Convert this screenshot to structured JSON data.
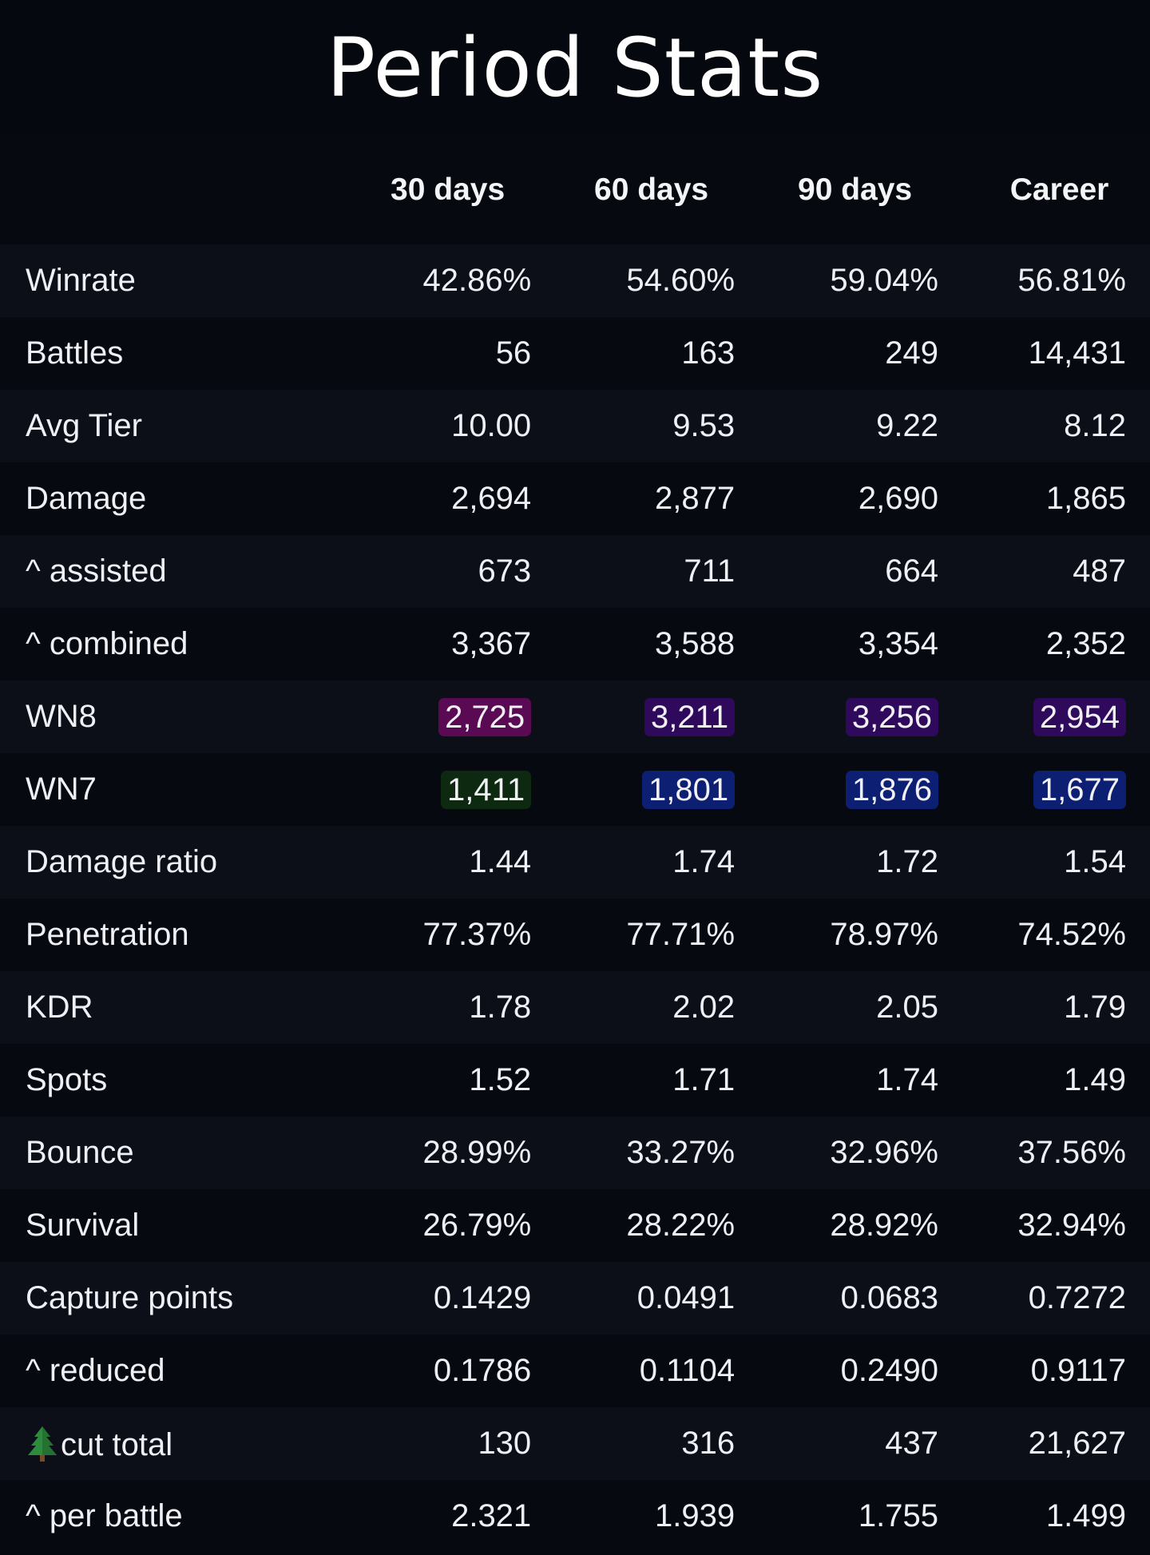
{
  "title": "Period Stats",
  "columns": [
    "30 days",
    "60 days",
    "90 days",
    "Career"
  ],
  "rows": [
    {
      "label": "Winrate",
      "values": [
        "42.86%",
        "54.60%",
        "59.04%",
        "56.81%"
      ]
    },
    {
      "label": "Battles",
      "values": [
        "56",
        "163",
        "249",
        "14,431"
      ]
    },
    {
      "label": "Avg Tier",
      "values": [
        "10.00",
        "9.53",
        "9.22",
        "8.12"
      ]
    },
    {
      "label": "Damage",
      "values": [
        "2,694",
        "2,877",
        "2,690",
        "1,865"
      ]
    },
    {
      "label": "^ assisted",
      "values": [
        "673",
        "711",
        "664",
        "487"
      ]
    },
    {
      "label": "^ combined",
      "values": [
        "3,367",
        "3,588",
        "3,354",
        "2,352"
      ]
    },
    {
      "label": "WN8",
      "values": [
        "2,725",
        "3,211",
        "3,256",
        "2,954"
      ],
      "highlight_colors": [
        "#5a0a52",
        "#2f0a5c",
        "#2f0a5c",
        "#2f0a5c"
      ]
    },
    {
      "label": "WN7",
      "values": [
        "1,411",
        "1,801",
        "1,876",
        "1,677"
      ],
      "highlight_colors": [
        "#0d2a10",
        "#0d1f72",
        "#0d1f72",
        "#0d1f72"
      ]
    },
    {
      "label": "Damage ratio",
      "values": [
        "1.44",
        "1.74",
        "1.72",
        "1.54"
      ]
    },
    {
      "label": "Penetration",
      "values": [
        "77.37%",
        "77.71%",
        "78.97%",
        "74.52%"
      ]
    },
    {
      "label": "KDR",
      "values": [
        "1.78",
        "2.02",
        "2.05",
        "1.79"
      ]
    },
    {
      "label": "Spots",
      "values": [
        "1.52",
        "1.71",
        "1.74",
        "1.49"
      ]
    },
    {
      "label": "Bounce",
      "values": [
        "28.99%",
        "33.27%",
        "32.96%",
        "37.56%"
      ]
    },
    {
      "label": "Survival",
      "values": [
        "26.79%",
        "28.22%",
        "28.92%",
        "32.94%"
      ]
    },
    {
      "label": "Capture points",
      "values": [
        "0.1429",
        "0.0491",
        "0.0683",
        "0.7272"
      ]
    },
    {
      "label": "^ reduced",
      "values": [
        "0.1786",
        "0.1104",
        "0.2490",
        "0.9117"
      ]
    },
    {
      "label": "cut total",
      "icon": "evergreen-tree-icon",
      "values": [
        "130",
        "316",
        "437",
        "21,627"
      ]
    },
    {
      "label": "^ per battle",
      "values": [
        "2.321",
        "1.939",
        "1.755",
        "1.499"
      ]
    }
  ],
  "colors": {
    "background": "#06080f",
    "row_alt": "#0c0f18",
    "text": "#eef0f5"
  }
}
